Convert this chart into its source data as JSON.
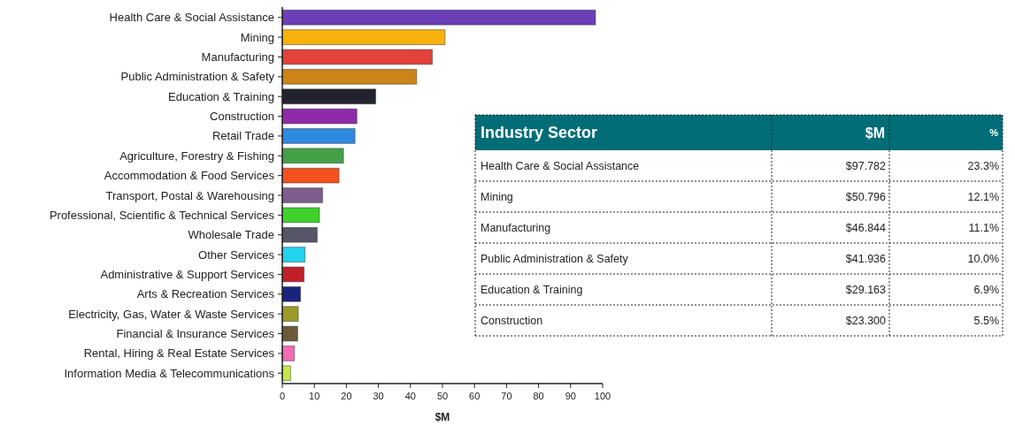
{
  "chart_data": [
    {
      "type": "bar",
      "orientation": "horizontal",
      "xlabel": "$M",
      "categories": [
        "Health Care & Social Assistance",
        "Mining",
        "Manufacturing",
        "Public Administration & Safety",
        "Education & Training",
        "Construction",
        "Retail Trade",
        "Agriculture, Forestry & Fishing",
        "Accommodation & Food Services",
        "Transport, Postal & Warehousing",
        "Professional, Scientific & Technical Services",
        "Wholesale Trade",
        "Other Services",
        "Administrative & Support Services",
        "Arts & Recreation Services",
        "Electricity, Gas, Water & Waste Services",
        "Financial & Insurance Services",
        "Rental, Hiring & Real Estate Services",
        "Information Media & Telecommunications"
      ],
      "values": [
        97.782,
        50.796,
        46.844,
        41.936,
        29.163,
        23.3,
        22.7,
        19.1,
        17.7,
        12.6,
        11.6,
        10.9,
        7.1,
        6.8,
        5.7,
        5.0,
        4.8,
        3.8,
        2.6
      ],
      "colors": [
        "#6a3fb8",
        "#f8b10c",
        "#e2413c",
        "#cc8418",
        "#23232f",
        "#8e2aa8",
        "#2f8ae0",
        "#43a047",
        "#f4511e",
        "#7e5e8e",
        "#3ed12c",
        "#565666",
        "#22d3ee",
        "#c0202a",
        "#1a237e",
        "#9e9a2a",
        "#6b5a3a",
        "#f06bb4",
        "#c6e84a"
      ],
      "xlim": [
        0,
        100
      ],
      "xticks": [
        0,
        10,
        20,
        30,
        40,
        50,
        60,
        70,
        80,
        90,
        100
      ],
      "grid": false
    },
    {
      "type": "other",
      "title": "Industry Sector",
      "categories": [
        "Health Care & Social Assistance",
        "Mining",
        "Manufacturing",
        "Public Administration & Safety",
        "Education & Training",
        "Construction"
      ],
      "annotations": [
        "$M",
        "%",
        "$97.782",
        "23.3%",
        "$50.796",
        "12.1%",
        "$46.844",
        "11.1%",
        "$41.936",
        "10.0%",
        "$29.163",
        "6.9%",
        "$23.300",
        "5.5%"
      ]
    }
  ]
}
